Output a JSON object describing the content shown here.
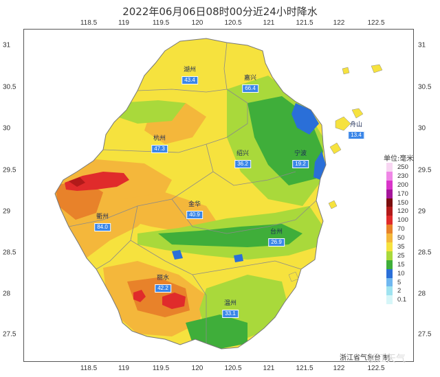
{
  "title": "2022年06月06日08时00分近24小时降水",
  "axes": {
    "longitude_ticks": [
      "118.5",
      "119",
      "119.5",
      "120",
      "120.5",
      "121",
      "121.5",
      "122",
      "122.5"
    ],
    "latitude_ticks": [
      "31",
      "30.5",
      "30",
      "29.5",
      "29",
      "28.5",
      "28",
      "27.5"
    ]
  },
  "legend": {
    "title": "单位:毫米",
    "items": [
      {
        "label": "250",
        "color": "#f7d6f2"
      },
      {
        "label": "230",
        "color": "#ef86e6"
      },
      {
        "label": "200",
        "color": "#d934c9"
      },
      {
        "label": "170",
        "color": "#a5159a"
      },
      {
        "label": "150",
        "color": "#7a0e0e"
      },
      {
        "label": "120",
        "color": "#b21a1a"
      },
      {
        "label": "100",
        "color": "#e02b2b"
      },
      {
        "label": "70",
        "color": "#e8822a"
      },
      {
        "label": "50",
        "color": "#f4b73b"
      },
      {
        "label": "35",
        "color": "#f6e23e"
      },
      {
        "label": "25",
        "color": "#a9d93b"
      },
      {
        "label": "15",
        "color": "#3fae3a"
      },
      {
        "label": "10",
        "color": "#2a6fd8"
      },
      {
        "label": "5",
        "color": "#6fb7f0"
      },
      {
        "label": "2",
        "color": "#9fe3f0"
      },
      {
        "label": "0.1",
        "color": "#d6f6f8"
      }
    ]
  },
  "stations": [
    {
      "name": "湖州",
      "value": "43.4"
    },
    {
      "name": "嘉兴",
      "value": "66.4"
    },
    {
      "name": "舟山",
      "value": "13.4"
    },
    {
      "name": "杭州",
      "value": "47.3"
    },
    {
      "name": "绍兴",
      "value": "36.2"
    },
    {
      "name": "宁波",
      "value": "19.2"
    },
    {
      "name": "衢州",
      "value": "84.0"
    },
    {
      "name": "金华",
      "value": "40.9"
    },
    {
      "name": "台州",
      "value": "26.9"
    },
    {
      "name": "丽水",
      "value": "42.2"
    },
    {
      "name": "温州",
      "value": "33.1"
    }
  ],
  "credit": "浙江省气象台 制",
  "watermark": "浙江天气"
}
